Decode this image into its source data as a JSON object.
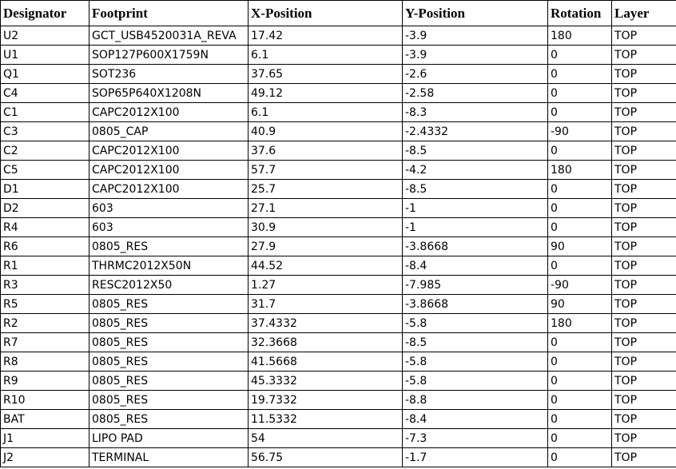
{
  "headers": [
    "Designator",
    "Footprint",
    "X-Position",
    "Y-Position",
    "Rotation",
    "Layer"
  ],
  "rows": [
    [
      "U2",
      "GCT_USB4520031A_REVA",
      "17.42",
      "-3.9",
      "180",
      "TOP"
    ],
    [
      "U1",
      "SOP127P600X1759N",
      "6.1",
      "-3.9",
      "0",
      "TOP"
    ],
    [
      "Q1",
      "SOT236",
      "37.65",
      "-2.6",
      "0",
      "TOP"
    ],
    [
      "C4",
      "SOP65P640X1208N",
      "49.12",
      "-2.58",
      "0",
      "TOP"
    ],
    [
      "C1",
      "CAPC2012X100",
      "6.1",
      "-8.3",
      "0",
      "TOP"
    ],
    [
      "C3",
      "0805_CAP",
      "40.9",
      "-2.4332",
      "-90",
      "TOP"
    ],
    [
      "C2",
      "CAPC2012X100",
      "37.6",
      "-8.5",
      "0",
      "TOP"
    ],
    [
      "C5",
      "CAPC2012X100",
      "57.7",
      "-4.2",
      "180",
      "TOP"
    ],
    [
      "D1",
      "CAPC2012X100",
      "25.7",
      "-8.5",
      "0",
      "TOP"
    ],
    [
      "D2",
      "603",
      "27.1",
      "-1",
      "0",
      "TOP"
    ],
    [
      "R4",
      "603",
      "30.9",
      "-1",
      "0",
      "TOP"
    ],
    [
      "R6",
      "0805_RES",
      "27.9",
      "-3.8668",
      "90",
      "TOP"
    ],
    [
      "R1",
      "THRMC2012X50N",
      "44.52",
      "-8.4",
      "0",
      "TOP"
    ],
    [
      "R3",
      "RESC2012X50",
      "1.27",
      "-7.985",
      "-90",
      "TOP"
    ],
    [
      "R5",
      "0805_RES",
      "31.7",
      "-3.8668",
      "90",
      "TOP"
    ],
    [
      "R2",
      "0805_RES",
      "37.4332",
      "-5.8",
      "180",
      "TOP"
    ],
    [
      "R7",
      "0805_RES",
      "32.3668",
      "-8.5",
      "0",
      "TOP"
    ],
    [
      "R8",
      "0805_RES",
      "41.5668",
      "-5.8",
      "0",
      "TOP"
    ],
    [
      "R9",
      "0805_RES",
      "45.3332",
      "-5.8",
      "0",
      "TOP"
    ],
    [
      "R10",
      "0805_RES",
      "19.7332",
      "-8.8",
      "0",
      "TOP"
    ],
    [
      "BAT",
      "0805_RES",
      "11.5332",
      "-8.4",
      "0",
      "TOP"
    ],
    [
      "J1",
      "LIPO PAD",
      "54",
      "-7.3",
      "0",
      "TOP"
    ],
    [
      "J2",
      "TERMINAL",
      "56.75",
      "-1.7",
      "0",
      "TOP"
    ]
  ]
}
